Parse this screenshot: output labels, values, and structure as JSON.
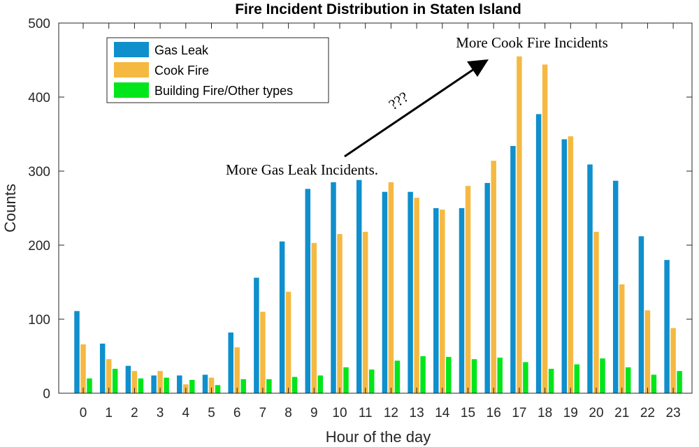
{
  "chart_data": {
    "type": "bar",
    "title": "Fire Incident Distribution in Staten Island",
    "xlabel": "Hour of the day",
    "ylabel": "Counts",
    "ylim": [
      0,
      500
    ],
    "yticks": [
      "0",
      "100",
      "200",
      "300",
      "400",
      "500"
    ],
    "grid": false,
    "legend_position": "top-left",
    "categories": [
      "0",
      "1",
      "2",
      "3",
      "4",
      "5",
      "6",
      "7",
      "8",
      "9",
      "10",
      "11",
      "12",
      "13",
      "14",
      "15",
      "16",
      "17",
      "18",
      "19",
      "20",
      "21",
      "22",
      "23"
    ],
    "series": [
      {
        "name": "Gas Leak",
        "color": "#0f8fcc",
        "values": [
          111,
          67,
          37,
          24,
          24,
          25,
          82,
          156,
          205,
          276,
          285,
          288,
          272,
          272,
          250,
          250,
          284,
          334,
          377,
          343,
          309,
          287,
          212,
          180
        ]
      },
      {
        "name": "Cook Fire",
        "color": "#f5b942",
        "values": [
          66,
          46,
          30,
          30,
          12,
          21,
          62,
          110,
          137,
          203,
          215,
          218,
          285,
          264,
          248,
          280,
          314,
          455,
          444,
          347,
          218,
          147,
          112,
          88
        ]
      },
      {
        "name": "Building Fire/Other types",
        "color": "#00e61a",
        "values": [
          20,
          33,
          20,
          21,
          18,
          11,
          19,
          19,
          22,
          24,
          35,
          32,
          44,
          50,
          49,
          46,
          48,
          42,
          33,
          39,
          47,
          35,
          25,
          30
        ]
      }
    ],
    "annotations": {
      "gas_leak_text": "More Gas Leak Incidents.",
      "cook_fire_text": "More Cook Fire Incidents",
      "question_text": "???"
    }
  }
}
